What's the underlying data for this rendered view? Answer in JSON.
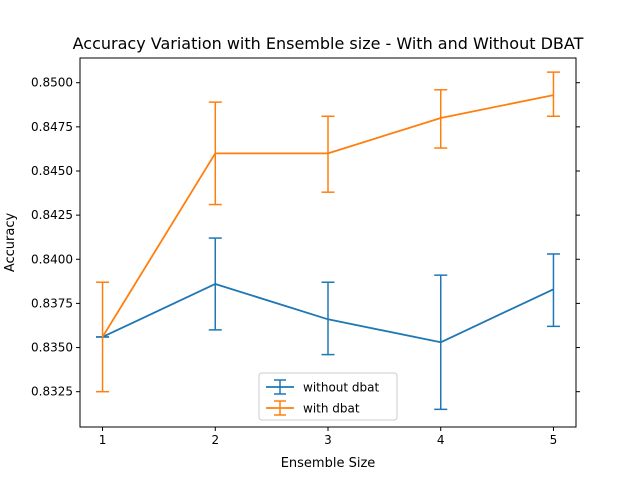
{
  "chart_data": {
    "type": "line",
    "title": "Accuracy Variation with Ensemble size - With and Without DBAT",
    "xlabel": "Ensemble Size",
    "ylabel": "Accuracy",
    "x": [
      1,
      2,
      3,
      4,
      5
    ],
    "xticks": [
      1,
      2,
      3,
      4,
      5
    ],
    "xlim": [
      0.8,
      5.2
    ],
    "ylim": [
      0.8305,
      0.8514
    ],
    "yticks": [
      0.8325,
      0.835,
      0.8375,
      0.84,
      0.8425,
      0.845,
      0.8475,
      0.85
    ],
    "ytick_labels": [
      "0.8325",
      "0.8350",
      "0.8375",
      "0.8400",
      "0.8425",
      "0.8450",
      "0.8475",
      "0.8500"
    ],
    "grid": false,
    "legend_position": "lower-center",
    "series": [
      {
        "name": "without dbat",
        "color": "#1f77b4",
        "values": [
          0.8356,
          0.8386,
          0.8366,
          0.8353,
          0.8383
        ],
        "err_low": [
          0.8356,
          0.836,
          0.8346,
          0.8315,
          0.8362
        ],
        "err_high": [
          0.8356,
          0.8412,
          0.8387,
          0.8391,
          0.8403
        ]
      },
      {
        "name": "with dbat",
        "color": "#ff7f0e",
        "values": [
          0.8356,
          0.846,
          0.846,
          0.848,
          0.8493
        ],
        "err_low": [
          0.8325,
          0.8431,
          0.8438,
          0.8463,
          0.8481
        ],
        "err_high": [
          0.8387,
          0.8489,
          0.8481,
          0.8496,
          0.8506
        ]
      }
    ]
  }
}
